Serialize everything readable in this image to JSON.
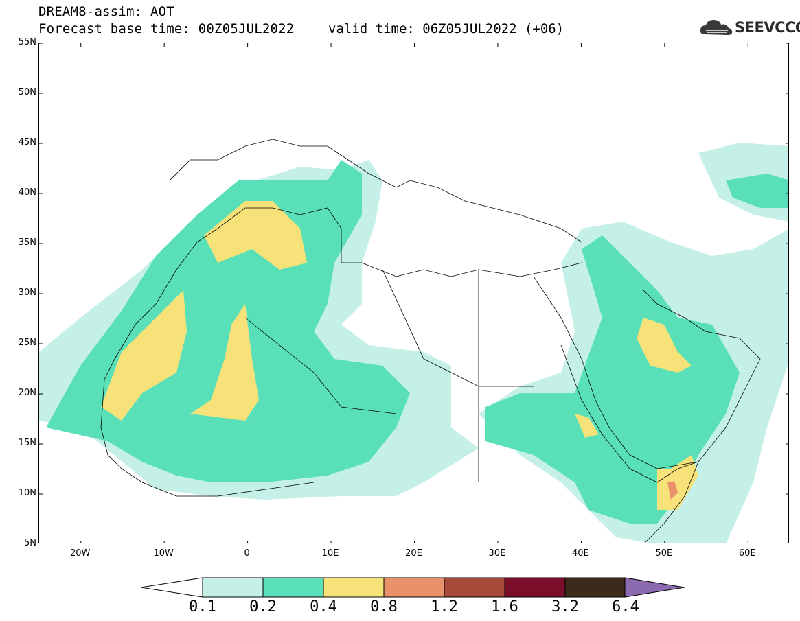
{
  "header": {
    "title": "DREAM8-assim: AOT",
    "base_time": "Forecast base time: 00Z05JUL2022",
    "valid_time": "valid time: 06Z05JUL2022 (+06)",
    "logo_text": "SEEVCCC"
  },
  "map": {
    "lon_range": [
      -25,
      65
    ],
    "lat_range": [
      5,
      55
    ],
    "lat_labels": [
      "55N",
      "50N",
      "45N",
      "40N",
      "35N",
      "30N",
      "25N",
      "20N",
      "15N",
      "10N",
      "5N"
    ],
    "lon_labels": [
      "20W",
      "10W",
      "0",
      "10E",
      "20E",
      "30E",
      "40E",
      "50E",
      "60E"
    ]
  },
  "legend": {
    "levels": [
      "0.1",
      "0.2",
      "0.4",
      "0.8",
      "1.2",
      "1.6",
      "3.2",
      "6.4"
    ],
    "colors": [
      "#ffffff",
      "#c4f0e8",
      "#5ae0b8",
      "#f7e27a",
      "#e8916a",
      "#a84a3a",
      "#7a0e2a",
      "#3d2a1a",
      "#8c6ab0"
    ]
  }
}
